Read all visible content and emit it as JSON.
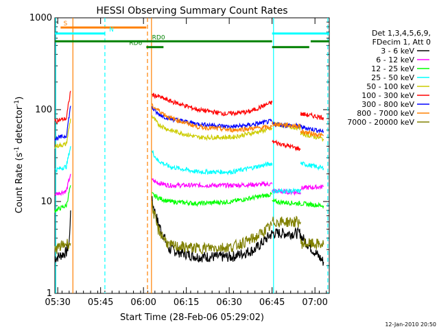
{
  "chart_data": {
    "type": "line",
    "title": "HESSI Observing Summary Count Rates",
    "xlabel": "Start Time (28-Feb-06 05:29:02)",
    "ylabel_main": "Count Rate (s",
    "ylabel_sup": "-1",
    "ylabel_mid": " detector",
    "ylabel_sup2": "-1",
    "ylabel_end": ")",
    "y_scale": "log",
    "ylim": [
      1,
      1000
    ],
    "xlim_minutes": [
      0,
      96
    ],
    "x_ticks": [
      {
        "label": "05:30",
        "m": 1
      },
      {
        "label": "05:45",
        "m": 16
      },
      {
        "label": "06:00",
        "m": 31
      },
      {
        "label": "06:15",
        "m": 46
      },
      {
        "label": "06:30",
        "m": 61
      },
      {
        "label": "06:45",
        "m": 76
      },
      {
        "label": "07:00",
        "m": 91
      }
    ],
    "y_ticks": [
      {
        "label": "1",
        "v": 1
      },
      {
        "label": "10",
        "v": 10
      },
      {
        "label": "100",
        "v": 100
      },
      {
        "label": "1000",
        "v": 1000
      }
    ],
    "legend_header": [
      "Det 1,3,4,5,6,9,",
      "FDecim 1, Att 0"
    ],
    "series": [
      {
        "name": "3 - 6 keV",
        "color": "#000000",
        "segments": [
          [
            [
              0,
              2.4
            ],
            [
              4,
              2.8
            ],
            [
              5,
              3.5
            ],
            [
              5.5,
              8
            ]
          ],
          [
            [
              34,
              10
            ],
            [
              36,
              6
            ],
            [
              40,
              3
            ],
            [
              50,
              2.5
            ],
            [
              62,
              2.5
            ],
            [
              70,
              3
            ],
            [
              76,
              4.5
            ]
          ],
          [
            [
              76,
              4.5
            ],
            [
              86,
              4.5
            ]
          ],
          [
            [
              86,
              4.2
            ],
            [
              94,
              2.2
            ]
          ]
        ]
      },
      {
        "name": "6 - 12 keV",
        "color": "#ff00ff",
        "segments": [
          [
            [
              0,
              12
            ],
            [
              4,
              13
            ],
            [
              5.5,
              20
            ]
          ],
          [
            [
              34,
              17
            ],
            [
              36,
              16
            ],
            [
              40,
              15
            ],
            [
              50,
              15
            ],
            [
              62,
              15
            ],
            [
              76,
              15.5
            ]
          ],
          [
            [
              76,
              13
            ],
            [
              86,
              12.5
            ]
          ],
          [
            [
              86,
              14
            ],
            [
              94,
              14.5
            ]
          ]
        ]
      },
      {
        "name": "12 - 25 keV",
        "color": "#00ff00",
        "segments": [
          [
            [
              0,
              8
            ],
            [
              4,
              9
            ],
            [
              5.5,
              15
            ]
          ],
          [
            [
              34,
              12
            ],
            [
              36,
              11
            ],
            [
              40,
              10
            ],
            [
              50,
              9.5
            ],
            [
              62,
              10
            ],
            [
              76,
              12
            ]
          ],
          [
            [
              76,
              10
            ],
            [
              86,
              9.5
            ]
          ],
          [
            [
              86,
              9.5
            ],
            [
              94,
              9
            ]
          ]
        ]
      },
      {
        "name": "25 - 50 keV",
        "color": "#00ffff",
        "segments": [
          [
            [
              0,
              22
            ],
            [
              4,
              24
            ],
            [
              5.5,
              40
            ]
          ],
          [
            [
              34,
              35
            ],
            [
              36,
              28
            ],
            [
              40,
              24
            ],
            [
              50,
              21
            ],
            [
              62,
              21
            ],
            [
              76,
              26
            ]
          ],
          [
            [
              76,
              13
            ],
            [
              86,
              13
            ]
          ],
          [
            [
              86,
              26
            ],
            [
              94,
              23
            ]
          ]
        ]
      },
      {
        "name": "50 - 100 keV",
        "color": "#cccc00",
        "segments": [
          [
            [
              0,
              40
            ],
            [
              4,
              42
            ],
            [
              5.5,
              80
            ]
          ],
          [
            [
              34,
              85
            ],
            [
              36,
              70
            ],
            [
              40,
              60
            ],
            [
              50,
              50
            ],
            [
              62,
              50
            ],
            [
              76,
              62
            ]
          ],
          [
            [
              76,
              70
            ],
            [
              86,
              63
            ]
          ],
          [
            [
              86,
              55
            ],
            [
              94,
              48
            ]
          ]
        ]
      },
      {
        "name": "100 - 300 keV",
        "color": "#ff0000",
        "segments": [
          [
            [
              0,
              75
            ],
            [
              4,
              80
            ],
            [
              5.5,
              160
            ]
          ],
          [
            [
              34,
              145
            ],
            [
              36,
              140
            ],
            [
              40,
              125
            ],
            [
              50,
              100
            ],
            [
              60,
              90
            ],
            [
              68,
              95
            ],
            [
              76,
              120
            ]
          ],
          [
            [
              76,
              45
            ],
            [
              86,
              37
            ]
          ],
          [
            [
              86,
              90
            ],
            [
              94,
              82
            ]
          ]
        ]
      },
      {
        "name": "300 - 800 keV",
        "color": "#0000ff",
        "segments": [
          [
            [
              0,
              48
            ],
            [
              4,
              52
            ],
            [
              5.5,
              110
            ]
          ],
          [
            [
              34,
              105
            ],
            [
              36,
              90
            ],
            [
              40,
              80
            ],
            [
              50,
              70
            ],
            [
              62,
              65
            ],
            [
              68,
              68
            ],
            [
              76,
              75
            ]
          ],
          [
            [
              76,
              70
            ],
            [
              86,
              66
            ]
          ],
          [
            [
              86,
              65
            ],
            [
              94,
              58
            ]
          ]
        ]
      },
      {
        "name": "800 - 7000 keV",
        "color": "#ff8000",
        "segments": [
          [
            [
              34,
              110
            ],
            [
              40,
              82
            ],
            [
              50,
              65
            ],
            [
              62,
              60
            ],
            [
              76,
              65
            ]
          ],
          [
            [
              76,
              70
            ],
            [
              86,
              66
            ]
          ],
          [
            [
              86,
              58
            ],
            [
              94,
              52
            ]
          ]
        ]
      },
      {
        "name": "7000 - 20000 keV",
        "color": "#808000",
        "segments": [
          [
            [
              0,
              3
            ],
            [
              4,
              3.5
            ],
            [
              5.5,
              3.5
            ]
          ],
          [
            [
              34,
              9
            ],
            [
              36,
              5
            ],
            [
              40,
              3.3
            ],
            [
              50,
              3.1
            ],
            [
              62,
              3.2
            ],
            [
              70,
              4
            ],
            [
              76,
              5.5
            ]
          ],
          [
            [
              76,
              6
            ],
            [
              86,
              6
            ]
          ],
          [
            [
              86,
              3.5
            ],
            [
              94,
              3.4
            ]
          ]
        ]
      }
    ],
    "flags": [
      {
        "label": "S",
        "color": "#ff8000",
        "y": 785,
        "x0": 2,
        "x1": 32,
        "label_m": 3
      },
      {
        "label": "N",
        "color": "#00ffff",
        "y": 675,
        "x0": 0,
        "x1": 17.5,
        "label_m": 19
      },
      {
        "label": "RD0",
        "color": "#008000",
        "y": 555,
        "x0": 0,
        "x1": 76,
        "label_m": 34
      },
      {
        "label": "RD6",
        "color": "#008000",
        "y": 480,
        "x0": 32,
        "x1": 38,
        "label_m": 26
      }
    ],
    "flag_tail_N": {
      "x0": 76,
      "x1": 96,
      "y": 675
    },
    "flag_tail_RD0": [
      {
        "x0": 76,
        "x1": 89,
        "y": 480
      },
      {
        "x0": 89.5,
        "x1": 96,
        "y": 555
      }
    ],
    "vlines": [
      {
        "m": 0.3,
        "color": "#00ffff",
        "dash": false
      },
      {
        "m": 6.3,
        "color": "#ff8000",
        "dash": false
      },
      {
        "m": 17.5,
        "color": "#00ffff",
        "dash": true
      },
      {
        "m": 32.4,
        "color": "#ff8000",
        "dash": true
      },
      {
        "m": 33.8,
        "color": "#ff8000",
        "dash": false
      },
      {
        "m": 76.5,
        "color": "#00ffff",
        "dash": false
      },
      {
        "m": 95.5,
        "color": "#00ffff",
        "dash": true
      }
    ],
    "legend_placement": "right"
  },
  "footer_timestamp": "12-Jan-2010 20:50"
}
